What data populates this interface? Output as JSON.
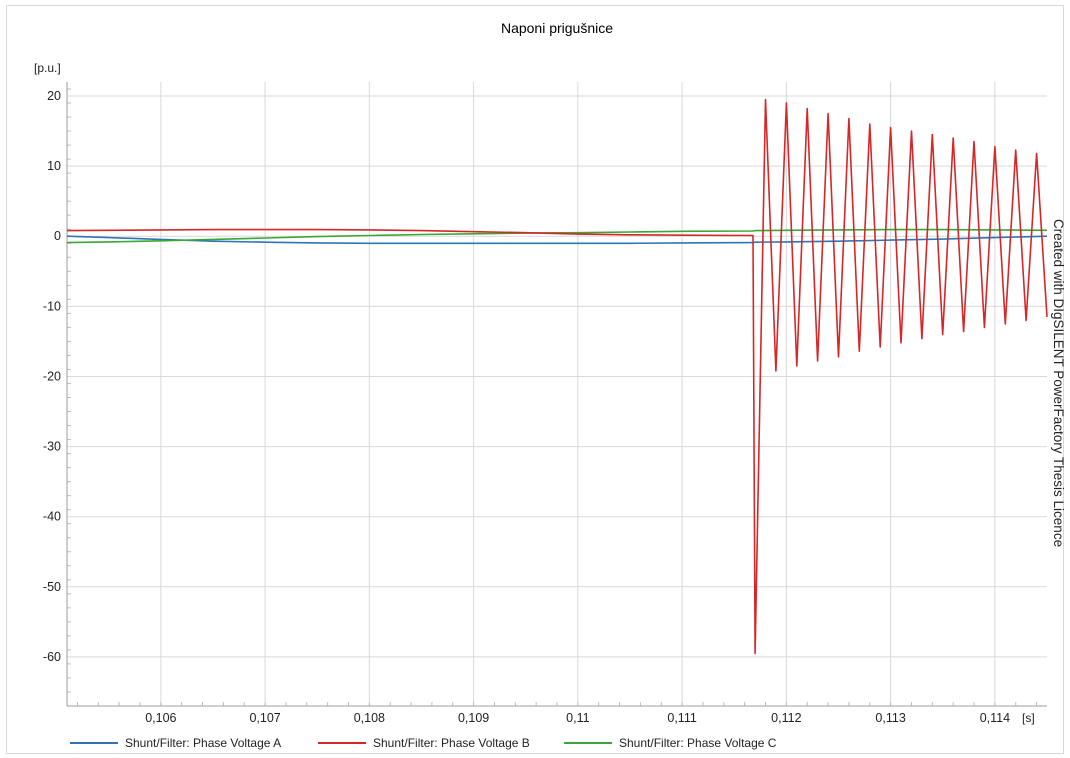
{
  "chart_data": {
    "type": "line",
    "title": "Naponi prigušnice",
    "ylabel": "[p.u.]",
    "xlabel": "[s]",
    "xlim": [
      0.1051,
      0.1145
    ],
    "ylim": [
      -67,
      22
    ],
    "grid": true,
    "x_ticks": [
      0.106,
      0.107,
      0.108,
      0.109,
      0.11,
      0.111,
      0.112,
      0.113,
      0.114
    ],
    "x_tick_labels": [
      "0,106",
      "0,107",
      "0,108",
      "0,109",
      "0,11",
      "0,111",
      "0,112",
      "0,113",
      "0,114"
    ],
    "y_ticks": [
      20,
      10,
      0,
      -10,
      -20,
      -30,
      -40,
      -50,
      -60
    ],
    "y_tick_labels": [
      "20",
      "10",
      "0",
      "-10",
      "-20",
      "-30",
      "-40",
      "-50",
      "-60"
    ],
    "legend_position": "bottom",
    "series": [
      {
        "name": "Shunt/Filter: Phase Voltage A",
        "color": "#2e75b6",
        "x": [
          0.1051,
          0.1055,
          0.106,
          0.1065,
          0.107,
          0.1075,
          0.108,
          0.1085,
          0.109,
          0.1095,
          0.11,
          0.1105,
          0.111,
          0.11168,
          0.1117,
          0.112,
          0.1125,
          0.113,
          0.1135,
          0.114,
          0.1145
        ],
        "y": [
          0.0,
          -0.2,
          -0.45,
          -0.7,
          -0.85,
          -0.95,
          -1.0,
          -1.0,
          -1.0,
          -1.0,
          -1.0,
          -1.0,
          -0.95,
          -0.9,
          -0.85,
          -0.8,
          -0.7,
          -0.55,
          -0.4,
          -0.2,
          0.0
        ]
      },
      {
        "name": "Shunt/Filter: Phase Voltage B",
        "color": "#d62728",
        "x": [
          0.1051,
          0.1055,
          0.106,
          0.1065,
          0.107,
          0.1075,
          0.108,
          0.1085,
          0.109,
          0.1095,
          0.11,
          0.1105,
          0.111,
          0.11168,
          0.1117,
          0.1118,
          0.1119,
          0.112,
          0.1121,
          0.1122,
          0.1123,
          0.1124,
          0.1125,
          0.1126,
          0.1127,
          0.1128,
          0.1129,
          0.113,
          0.1131,
          0.1132,
          0.1133,
          0.1134,
          0.1135,
          0.1136,
          0.1137,
          0.1138,
          0.1139,
          0.114,
          0.1141,
          0.1142,
          0.1143,
          0.1144,
          0.1145
        ],
        "y": [
          0.8,
          0.85,
          0.9,
          0.95,
          0.95,
          0.95,
          0.9,
          0.8,
          0.65,
          0.5,
          0.3,
          0.2,
          0.15,
          0.1,
          -59.5,
          19.5,
          -19.2,
          19.0,
          -18.5,
          18.2,
          -17.8,
          17.5,
          -17.2,
          16.8,
          -16.4,
          16.0,
          -15.8,
          15.5,
          -15.2,
          15.0,
          -14.6,
          14.5,
          -14.0,
          14.0,
          -13.6,
          13.5,
          -13.0,
          12.8,
          -12.5,
          12.3,
          -12.0,
          11.8,
          -11.5
        ]
      },
      {
        "name": "Shunt/Filter: Phase Voltage C",
        "color": "#3aa635",
        "x": [
          0.1051,
          0.1055,
          0.106,
          0.1065,
          0.107,
          0.1075,
          0.108,
          0.1085,
          0.109,
          0.1095,
          0.11,
          0.1105,
          0.111,
          0.11168,
          0.1117,
          0.112,
          0.1125,
          0.113,
          0.1135,
          0.114,
          0.1145
        ],
        "y": [
          -0.9,
          -0.8,
          -0.65,
          -0.45,
          -0.25,
          -0.05,
          0.1,
          0.25,
          0.35,
          0.45,
          0.5,
          0.6,
          0.7,
          0.75,
          0.8,
          0.85,
          0.9,
          0.95,
          0.95,
          0.9,
          0.85
        ]
      }
    ]
  },
  "watermark": "Created with DIgSILENT PowerFactory Thesis Licence"
}
